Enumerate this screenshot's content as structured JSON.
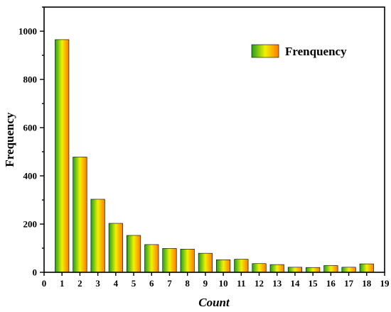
{
  "chart_data": {
    "type": "bar",
    "xlabel": "Count",
    "ylabel": "Frequency",
    "legend": {
      "position": "top-right",
      "entries": [
        "Frenquency"
      ]
    },
    "xlim": [
      0,
      19
    ],
    "ylim": [
      0,
      1100
    ],
    "x_ticks": [
      "0",
      "1",
      "2",
      "3",
      "4",
      "5",
      "6",
      "7",
      "8",
      "9",
      "10",
      "11",
      "12",
      "13",
      "14",
      "15",
      "16",
      "17",
      "18",
      "19"
    ],
    "y_ticks": [
      "0",
      "200",
      "400",
      "600",
      "800",
      "1000"
    ],
    "grid": false,
    "bar_gradient": [
      "#1fa01f",
      "#f2f200",
      "#ff7a00"
    ],
    "series": [
      {
        "name": "Frenquency",
        "x": [
          1,
          2,
          3,
          4,
          5,
          6,
          7,
          8,
          9,
          10,
          11,
          12,
          13,
          14,
          15,
          16,
          17,
          18
        ],
        "values": [
          965,
          478,
          303,
          203,
          153,
          115,
          99,
          96,
          79,
          52,
          54,
          36,
          32,
          21,
          20,
          28,
          21,
          35
        ]
      }
    ]
  }
}
